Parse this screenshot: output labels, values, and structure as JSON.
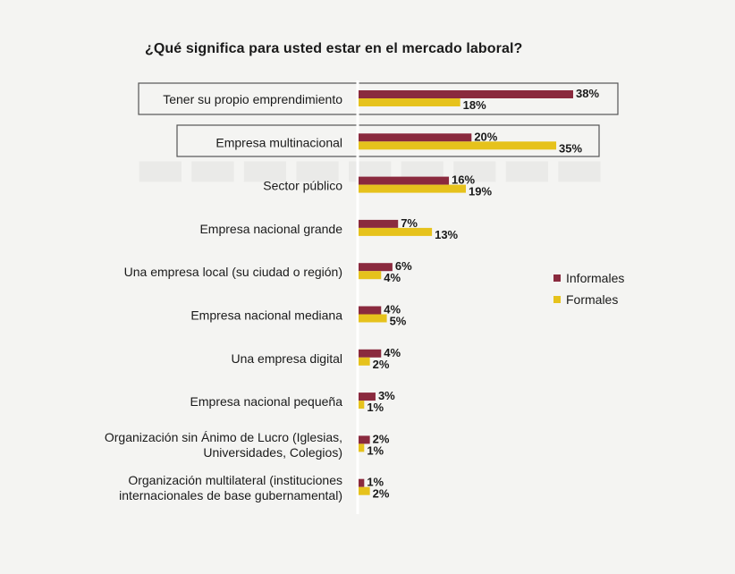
{
  "chart_data": {
    "type": "bar",
    "orientation": "horizontal",
    "title": "¿Qué significa para usted estar en el mercado laboral?",
    "xlabel": "",
    "ylabel": "",
    "xlim": [
      0,
      38
    ],
    "grid": false,
    "legend_position": "right",
    "value_format": "percent",
    "categories": [
      [
        "Tener su propio emprendimiento"
      ],
      [
        "Empresa multinacional"
      ],
      [
        "Sector público"
      ],
      [
        "Empresa nacional grande"
      ],
      [
        "Una empresa local (su ciudad o región)"
      ],
      [
        "Empresa nacional mediana"
      ],
      [
        "Una empresa digital"
      ],
      [
        "Empresa nacional pequeña"
      ],
      [
        "Organización sin Ánimo de Lucro (Iglesias,",
        "Universidades, Colegios)"
      ],
      [
        "Organización multilateral (instituciones",
        "internacionales de base gubernamental)"
      ]
    ],
    "highlighted_categories": [
      0,
      1
    ],
    "series": [
      {
        "name": "Informales",
        "color": "#8a2a3e",
        "values": [
          38,
          20,
          16,
          7,
          6,
          4,
          4,
          3,
          2,
          1
        ]
      },
      {
        "name": "Formales",
        "color": "#e6c21c",
        "values": [
          18,
          35,
          19,
          13,
          4,
          5,
          2,
          1,
          1,
          2
        ]
      }
    ]
  },
  "colors": {
    "background": "#f4f4f2",
    "axis": "#ffffff",
    "box_border": "#555555"
  }
}
